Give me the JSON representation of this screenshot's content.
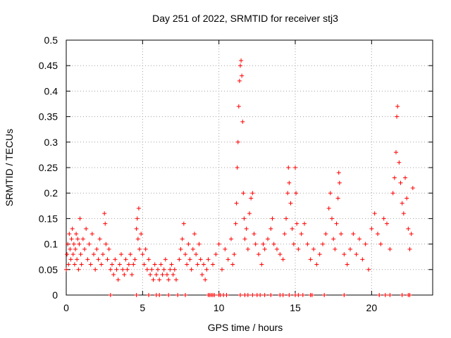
{
  "chart_data": {
    "type": "scatter",
    "title": "Day 251 of 2022, SRMTID for receiver stj3",
    "xlabel": "GPS time / hours",
    "ylabel": "SRMTID / TECUs",
    "xlim": [
      0,
      24
    ],
    "ylim": [
      0,
      0.5
    ],
    "x_ticks": [
      0,
      5,
      10,
      15,
      20
    ],
    "x_tick_labels": [
      "0",
      "5",
      "10",
      "15",
      "20"
    ],
    "y_ticks": [
      0,
      0.05,
      0.1,
      0.15,
      0.2,
      0.25,
      0.3,
      0.35,
      0.4,
      0.45,
      0.5
    ],
    "y_tick_labels": [
      "0",
      "0.05",
      "0.1",
      "0.15",
      "0.2",
      "0.25",
      "0.3",
      "0.35",
      "0.4",
      "0.45",
      "0.5"
    ],
    "grid": true,
    "marker": "+",
    "color": "#ff0000",
    "series": [
      {
        "name": "SRMTID",
        "points": [
          [
            0.0,
            0.05
          ],
          [
            0.05,
            0.08
          ],
          [
            0.1,
            0.1
          ],
          [
            0.15,
            0.06
          ],
          [
            0.2,
            0.12
          ],
          [
            0.25,
            0.09
          ],
          [
            0.3,
            0.07
          ],
          [
            0.35,
            0.11
          ],
          [
            0.4,
            0.13
          ],
          [
            0.45,
            0.08
          ],
          [
            0.5,
            0.1
          ],
          [
            0.55,
            0.06
          ],
          [
            0.6,
            0.09
          ],
          [
            0.65,
            0.12
          ],
          [
            0.7,
            0.07
          ],
          [
            0.75,
            0.11
          ],
          [
            0.8,
            0.05
          ],
          [
            0.85,
            0.1
          ],
          [
            0.9,
            0.15
          ],
          [
            0.95,
            0.08
          ],
          [
            1.0,
            0.06
          ],
          [
            1.1,
            0.11
          ],
          [
            1.2,
            0.09
          ],
          [
            1.3,
            0.13
          ],
          [
            1.4,
            0.07
          ],
          [
            1.5,
            0.1
          ],
          [
            1.6,
            0.06
          ],
          [
            1.7,
            0.12
          ],
          [
            1.8,
            0.08
          ],
          [
            1.9,
            0.05
          ],
          [
            2.0,
            0.09
          ],
          [
            2.1,
            0.07
          ],
          [
            2.2,
            0.11
          ],
          [
            2.3,
            0.06
          ],
          [
            2.4,
            0.08
          ],
          [
            2.5,
            0.16
          ],
          [
            2.55,
            0.14
          ],
          [
            2.6,
            0.1
          ],
          [
            2.7,
            0.07
          ],
          [
            2.8,
            0.09
          ],
          [
            2.9,
            0.05
          ],
          [
            3.0,
            0.06
          ],
          [
            3.1,
            0.04
          ],
          [
            3.2,
            0.07
          ],
          [
            3.3,
            0.05
          ],
          [
            3.4,
            0.03
          ],
          [
            3.5,
            0.06
          ],
          [
            3.6,
            0.08
          ],
          [
            3.7,
            0.05
          ],
          [
            3.8,
            0.04
          ],
          [
            3.9,
            0.07
          ],
          [
            4.0,
            0.05
          ],
          [
            4.1,
            0.06
          ],
          [
            4.2,
            0.08
          ],
          [
            4.3,
            0.04
          ],
          [
            4.4,
            0.06
          ],
          [
            4.5,
            0.07
          ],
          [
            4.6,
            0.13
          ],
          [
            4.65,
            0.15
          ],
          [
            4.7,
            0.11
          ],
          [
            4.75,
            0.17
          ],
          [
            4.8,
            0.09
          ],
          [
            4.9,
            0.12
          ],
          [
            5.0,
            0.08
          ],
          [
            5.1,
            0.06
          ],
          [
            5.2,
            0.09
          ],
          [
            5.3,
            0.05
          ],
          [
            5.4,
            0.07
          ],
          [
            5.5,
            0.04
          ],
          [
            5.6,
            0.05
          ],
          [
            5.7,
            0.03
          ],
          [
            5.8,
            0.06
          ],
          [
            5.9,
            0.04
          ],
          [
            6.0,
            0.05
          ],
          [
            6.1,
            0.03
          ],
          [
            6.2,
            0.06
          ],
          [
            6.3,
            0.04
          ],
          [
            6.4,
            0.05
          ],
          [
            6.5,
            0.07
          ],
          [
            6.6,
            0.04
          ],
          [
            6.7,
            0.03
          ],
          [
            6.8,
            0.05
          ],
          [
            6.9,
            0.06
          ],
          [
            7.0,
            0.04
          ],
          [
            7.1,
            0.05
          ],
          [
            7.2,
            0.03
          ],
          [
            7.4,
            0.07
          ],
          [
            7.5,
            0.09
          ],
          [
            7.6,
            0.11
          ],
          [
            7.7,
            0.14
          ],
          [
            7.8,
            0.08
          ],
          [
            7.9,
            0.06
          ],
          [
            8.0,
            0.1
          ],
          [
            8.1,
            0.07
          ],
          [
            8.2,
            0.05
          ],
          [
            8.3,
            0.09
          ],
          [
            8.4,
            0.12
          ],
          [
            8.5,
            0.08
          ],
          [
            8.6,
            0.06
          ],
          [
            8.7,
            0.1
          ],
          [
            8.8,
            0.07
          ],
          [
            8.9,
            0.04
          ],
          [
            9.0,
            0.06
          ],
          [
            9.1,
            0.03
          ],
          [
            9.2,
            0.05
          ],
          [
            9.3,
            0.07
          ],
          [
            9.6,
            0.06
          ],
          [
            9.8,
            0.08
          ],
          [
            10.0,
            0.1
          ],
          [
            10.2,
            0.05
          ],
          [
            10.4,
            0.09
          ],
          [
            10.6,
            0.07
          ],
          [
            10.8,
            0.11
          ],
          [
            10.9,
            0.06
          ],
          [
            11.0,
            0.08
          ],
          [
            11.1,
            0.14
          ],
          [
            11.15,
            0.18
          ],
          [
            11.2,
            0.25
          ],
          [
            11.25,
            0.3
          ],
          [
            11.3,
            0.37
          ],
          [
            11.35,
            0.42
          ],
          [
            11.4,
            0.45
          ],
          [
            11.45,
            0.46
          ],
          [
            11.5,
            0.43
          ],
          [
            11.55,
            0.34
          ],
          [
            11.6,
            0.2
          ],
          [
            11.65,
            0.15
          ],
          [
            11.7,
            0.11
          ],
          [
            11.8,
            0.13
          ],
          [
            11.9,
            0.09
          ],
          [
            12.0,
            0.16
          ],
          [
            12.1,
            0.19
          ],
          [
            12.2,
            0.2
          ],
          [
            12.3,
            0.12
          ],
          [
            12.4,
            0.1
          ],
          [
            12.6,
            0.08
          ],
          [
            12.8,
            0.06
          ],
          [
            12.9,
            0.1
          ],
          [
            13.0,
            0.09
          ],
          [
            13.2,
            0.11
          ],
          [
            13.4,
            0.13
          ],
          [
            13.5,
            0.15
          ],
          [
            13.6,
            0.1
          ],
          [
            13.8,
            0.09
          ],
          [
            14.0,
            0.08
          ],
          [
            14.2,
            0.07
          ],
          [
            14.3,
            0.12
          ],
          [
            14.4,
            0.15
          ],
          [
            14.5,
            0.2
          ],
          [
            14.55,
            0.25
          ],
          [
            14.6,
            0.22
          ],
          [
            14.7,
            0.18
          ],
          [
            14.8,
            0.13
          ],
          [
            14.9,
            0.1
          ],
          [
            15.0,
            0.25
          ],
          [
            15.05,
            0.2
          ],
          [
            15.1,
            0.14
          ],
          [
            15.2,
            0.09
          ],
          [
            15.4,
            0.12
          ],
          [
            15.6,
            0.14
          ],
          [
            15.8,
            0.1
          ],
          [
            16.0,
            0.07
          ],
          [
            16.2,
            0.09
          ],
          [
            16.4,
            0.06
          ],
          [
            16.6,
            0.08
          ],
          [
            16.8,
            0.1
          ],
          [
            17.0,
            0.12
          ],
          [
            17.2,
            0.17
          ],
          [
            17.3,
            0.2
          ],
          [
            17.4,
            0.15
          ],
          [
            17.5,
            0.11
          ],
          [
            17.6,
            0.09
          ],
          [
            17.7,
            0.14
          ],
          [
            17.8,
            0.19
          ],
          [
            17.85,
            0.24
          ],
          [
            17.9,
            0.22
          ],
          [
            18.0,
            0.12
          ],
          [
            18.2,
            0.08
          ],
          [
            18.4,
            0.06
          ],
          [
            18.6,
            0.09
          ],
          [
            18.8,
            0.12
          ],
          [
            19.0,
            0.08
          ],
          [
            19.2,
            0.11
          ],
          [
            19.4,
            0.07
          ],
          [
            19.6,
            0.1
          ],
          [
            19.8,
            0.05
          ],
          [
            20.0,
            0.13
          ],
          [
            20.2,
            0.16
          ],
          [
            20.4,
            0.12
          ],
          [
            20.6,
            0.1
          ],
          [
            20.8,
            0.15
          ],
          [
            21.0,
            0.14
          ],
          [
            21.2,
            0.09
          ],
          [
            21.4,
            0.2
          ],
          [
            21.5,
            0.23
          ],
          [
            21.6,
            0.28
          ],
          [
            21.65,
            0.35
          ],
          [
            21.7,
            0.37
          ],
          [
            21.8,
            0.26
          ],
          [
            21.9,
            0.22
          ],
          [
            22.0,
            0.18
          ],
          [
            22.1,
            0.16
          ],
          [
            22.2,
            0.23
          ],
          [
            22.3,
            0.19
          ],
          [
            22.4,
            0.13
          ],
          [
            22.5,
            0.09
          ],
          [
            22.6,
            0.12
          ],
          [
            22.7,
            0.21
          ]
        ]
      }
    ],
    "baseline_marks_x": [
      2.9,
      4.6,
      5.4,
      5.9,
      6.1,
      6.7,
      7.3,
      7.8,
      9.3,
      9.4,
      9.5,
      9.6,
      9.7,
      10.0,
      10.1,
      10.3,
      10.5,
      11.4,
      11.7,
      11.9,
      12.2,
      12.5,
      12.7,
      13.0,
      13.4,
      14.0,
      14.2,
      14.6,
      15.0,
      15.2,
      15.5,
      16.0,
      16.1,
      16.9,
      18.2,
      20.5,
      20.9,
      21.2,
      22.0,
      22.4,
      22.5
    ]
  }
}
